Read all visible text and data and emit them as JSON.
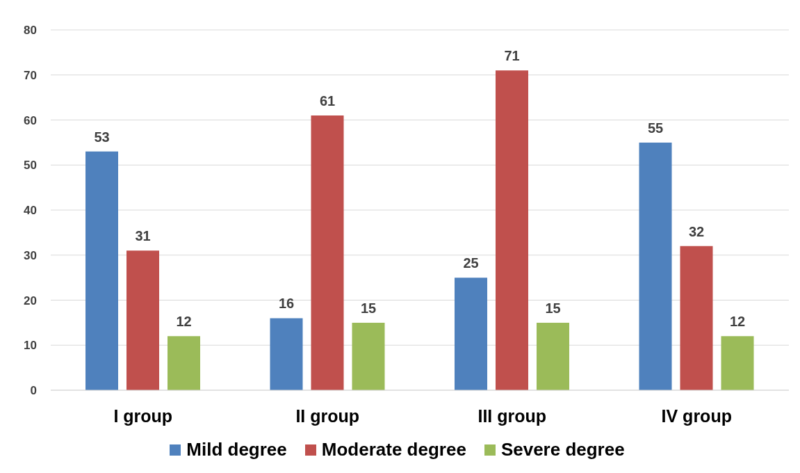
{
  "chart_data": {
    "type": "bar",
    "categories": [
      "I group",
      "II group",
      "III group",
      "IV group"
    ],
    "series": [
      {
        "name": "Mild degree",
        "color": "#4f81bd",
        "values": [
          53,
          16,
          25,
          55
        ]
      },
      {
        "name": "Moderate degree",
        "color": "#c0504d",
        "values": [
          31,
          61,
          71,
          32
        ]
      },
      {
        "name": "Severe degree",
        "color": "#9bbb59",
        "values": [
          12,
          15,
          15,
          12
        ]
      }
    ],
    "ylim": [
      0,
      80
    ],
    "yticks": [
      0,
      10,
      20,
      30,
      40,
      50,
      60,
      70,
      80
    ],
    "grid": "y",
    "legend": "bottom",
    "data_labels": true
  }
}
